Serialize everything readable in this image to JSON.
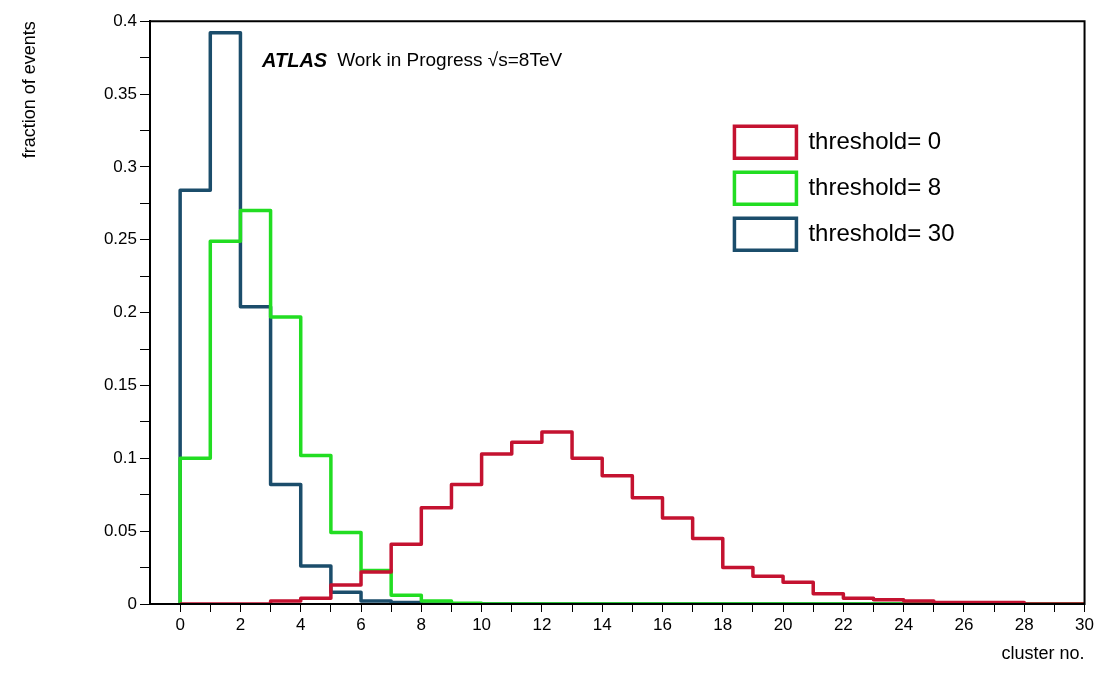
{
  "chart_data": {
    "type": "histogram",
    "xlabel": "cluster no.",
    "ylabel": "fraction of events",
    "annotations": [
      "ATLAS",
      "Work in Progress √s=8TeV"
    ],
    "bins": [
      0,
      1,
      2,
      3,
      4,
      5,
      6,
      7,
      8,
      9,
      10,
      11,
      12,
      13,
      14,
      15,
      16,
      17,
      18,
      19,
      20,
      21,
      22,
      23,
      24,
      25,
      26,
      27,
      28,
      29,
      30
    ],
    "series": [
      {
        "name": "threshold= 0",
        "color": "#c41230",
        "values": [
          0,
          0,
          0,
          0.002,
          0.004,
          0.013,
          0.022,
          0.041,
          0.066,
          0.082,
          0.103,
          0.111,
          0.118,
          0.1,
          0.088,
          0.073,
          0.059,
          0.045,
          0.025,
          0.019,
          0.015,
          0.007,
          0.004,
          0.003,
          0.002,
          0.001,
          0.001,
          0.001,
          0,
          0
        ]
      },
      {
        "name": "threshold= 8",
        "color": "#22dd22",
        "values": [
          0.1,
          0.249,
          0.27,
          0.197,
          0.102,
          0.049,
          0.023,
          0.006,
          0.002,
          0.0005,
          0,
          0,
          0,
          0,
          0,
          0,
          0,
          0,
          0,
          0,
          0,
          0,
          0,
          0,
          0,
          0,
          0,
          0,
          0,
          0
        ]
      },
      {
        "name": "threshold= 30",
        "color": "#1b4d6b",
        "values": [
          0.284,
          0.392,
          0.204,
          0.082,
          0.026,
          0.008,
          0.002,
          0.001,
          0,
          0,
          0,
          0,
          0,
          0,
          0,
          0,
          0,
          0,
          0,
          0,
          0,
          0,
          0,
          0,
          0,
          0,
          0,
          0,
          0,
          0
        ]
      }
    ],
    "xlim": [
      -1,
      30
    ],
    "xticks": [
      0,
      {
        "value": 1,
        "label": null
      },
      2,
      {
        "value": 3,
        "label": null
      },
      4,
      {
        "value": 5,
        "label": null
      },
      6,
      {
        "value": 7,
        "label": null
      },
      8,
      {
        "value": 9,
        "label": null
      },
      10,
      {
        "value": 11,
        "label": null
      },
      12,
      {
        "value": 13,
        "label": null
      },
      14,
      {
        "value": 15,
        "label": null
      },
      16,
      {
        "value": 17,
        "label": null
      },
      18,
      {
        "value": 19,
        "label": null
      },
      20,
      {
        "value": 21,
        "label": null
      },
      22,
      {
        "value": 23,
        "label": null
      },
      24,
      {
        "value": 25,
        "label": null
      },
      26,
      {
        "value": 27,
        "label": null
      },
      28,
      {
        "value": 29,
        "label": null
      },
      30
    ],
    "ylim": [
      0,
      0.4
    ],
    "yticks": [
      0,
      {
        "value": 0.025,
        "label": null
      },
      0.05,
      {
        "value": 0.075,
        "label": null
      },
      0.1,
      {
        "value": 0.125,
        "label": null
      },
      0.15,
      {
        "value": 0.175,
        "label": null
      },
      0.2,
      {
        "value": 0.225,
        "label": null
      },
      0.25,
      {
        "value": 0.275,
        "label": null
      },
      0.3,
      {
        "value": 0.325,
        "label": null
      },
      0.35,
      {
        "value": 0.375,
        "label": null
      },
      0.4
    ],
    "grid": false,
    "legend": "top right",
    "line_style": "solid",
    "marker": "none"
  }
}
